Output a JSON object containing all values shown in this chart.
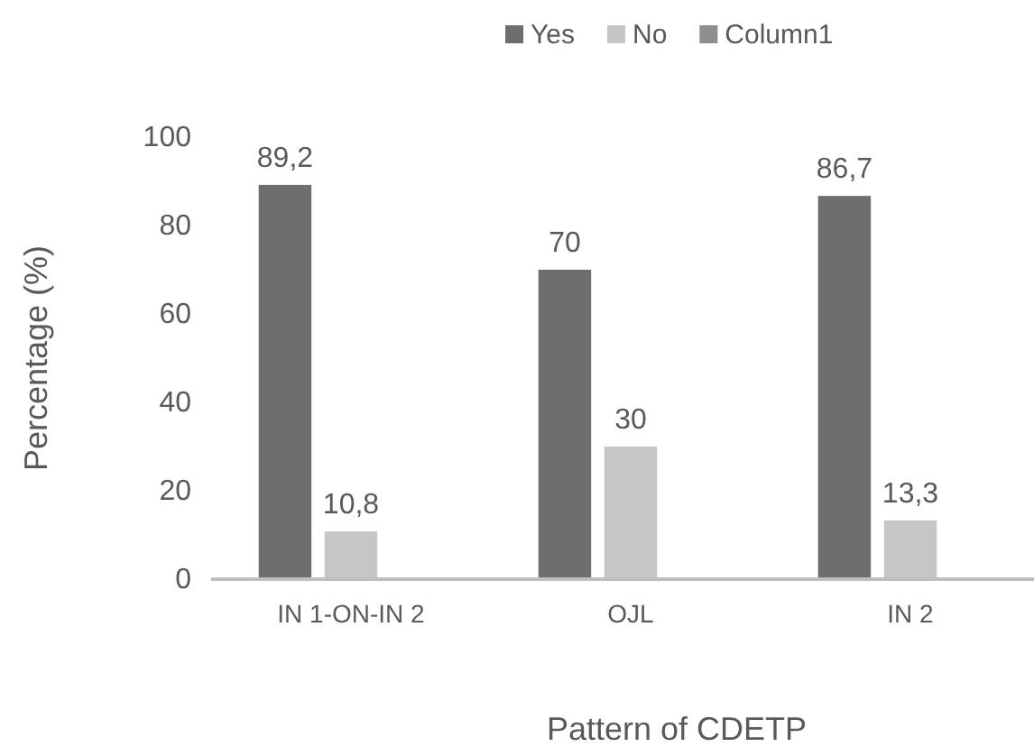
{
  "chart_data": {
    "type": "bar",
    "xlabel": "Pattern of CDETP",
    "ylabel": "Percentage (%)",
    "categories": [
      "IN 1-ON-IN 2",
      "OJL",
      "IN 2"
    ],
    "series": [
      {
        "name": "Yes",
        "color": "#6e6e6e",
        "values": [
          89.2,
          70,
          86.7
        ],
        "value_labels": [
          "89,2",
          "70",
          "86,7"
        ]
      },
      {
        "name": "No",
        "color": "#c6c6c6",
        "values": [
          10.8,
          30,
          13.3
        ],
        "value_labels": [
          "10,8",
          "30",
          "13,3"
        ]
      },
      {
        "name": "Column1",
        "color": "#8e8e8e",
        "values": [
          null,
          null,
          null
        ]
      }
    ],
    "ylim": [
      0,
      100
    ],
    "yticks": [
      0,
      20,
      40,
      60,
      80,
      100
    ],
    "grid": false,
    "legend": "top right"
  }
}
